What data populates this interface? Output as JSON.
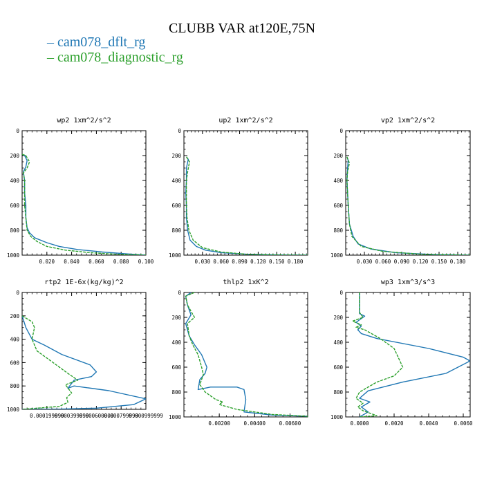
{
  "page_title": "CLUBB VAR at120E,75N",
  "legend": [
    {
      "label": "cam078_dflt_rg",
      "color": "#1f77b4"
    },
    {
      "label": "cam078_diagnostic_rg",
      "color": "#2ca02c"
    }
  ],
  "chart_data": [
    {
      "type": "line",
      "title": "wp2  1xm^2/s^2",
      "xlim": [
        0.0,
        0.1
      ],
      "ylim": [
        1000,
        0
      ],
      "xticks": [
        0.02,
        0.04,
        0.06,
        0.08,
        0.1
      ],
      "xticklabels": [
        "0.020",
        "0.040",
        "0.060",
        "0.080",
        "0.100"
      ],
      "yticks": [
        0,
        200,
        400,
        600,
        800,
        1000
      ],
      "yticklabels": [
        "0",
        "200",
        "400",
        "600",
        "800",
        "1000"
      ],
      "series": [
        {
          "name": "cam078_dflt_rg",
          "color": "#1f77b4",
          "x": [
            0.0,
            0.002,
            0.004,
            0.003,
            0.001,
            0.002,
            0.002,
            0.003,
            0.003,
            0.004,
            0.006,
            0.01,
            0.02,
            0.03,
            0.045,
            0.065,
            0.085,
            0.1
          ],
          "y": [
            190,
            200,
            240,
            290,
            330,
            400,
            500,
            600,
            700,
            780,
            820,
            860,
            900,
            930,
            955,
            975,
            990,
            1000
          ]
        },
        {
          "name": "cam078_diagnostic_rg",
          "color": "#2ca02c",
          "x": [
            0.0,
            0.003,
            0.006,
            0.004,
            0.001,
            0.002,
            0.002,
            0.002,
            0.003,
            0.004,
            0.007,
            0.012,
            0.02,
            0.035,
            0.055,
            0.075,
            0.095,
            0.1
          ],
          "y": [
            190,
            200,
            250,
            300,
            340,
            400,
            500,
            600,
            700,
            800,
            850,
            890,
            930,
            960,
            980,
            992,
            998,
            1000
          ]
        }
      ]
    },
    {
      "type": "line",
      "title": "up2  1xm^2/s^2",
      "xlim": [
        0.0,
        0.2
      ],
      "ylim": [
        1000,
        0
      ],
      "xticks": [
        0.03,
        0.06,
        0.09,
        0.12,
        0.15,
        0.18
      ],
      "xticklabels": [
        "0.030",
        "0.060",
        "0.090",
        "0.120",
        "0.150",
        "0.180"
      ],
      "yticks": [
        0,
        200,
        400,
        600,
        800,
        1000
      ],
      "yticklabels": [
        "0",
        "200",
        "400",
        "600",
        "800",
        "1000"
      ],
      "series": [
        {
          "name": "cam078_dflt_rg",
          "color": "#1f77b4",
          "x": [
            0.004,
            0.007,
            0.004,
            0.004,
            0.003,
            0.004,
            0.004,
            0.006,
            0.01,
            0.02,
            0.035,
            0.06,
            0.1,
            0.15,
            0.2
          ],
          "y": [
            210,
            230,
            300,
            400,
            500,
            600,
            700,
            800,
            880,
            930,
            960,
            980,
            992,
            998,
            1000
          ]
        },
        {
          "name": "cam078_diagnostic_rg",
          "color": "#2ca02c",
          "x": [
            0.004,
            0.009,
            0.006,
            0.004,
            0.004,
            0.004,
            0.005,
            0.008,
            0.015,
            0.03,
            0.06,
            0.1,
            0.15,
            0.2
          ],
          "y": [
            210,
            250,
            330,
            400,
            500,
            600,
            700,
            800,
            880,
            940,
            975,
            992,
            998,
            1000
          ]
        }
      ]
    },
    {
      "type": "line",
      "title": "vp2  1xm^2/s^2",
      "xlim": [
        0.0,
        0.2
      ],
      "ylim": [
        1000,
        0
      ],
      "xticks": [
        0.03,
        0.06,
        0.09,
        0.12,
        0.15,
        0.18
      ],
      "xticklabels": [
        "0.030",
        "0.060",
        "0.090",
        "0.120",
        "0.150",
        "0.180"
      ],
      "yticks": [
        0,
        200,
        400,
        600,
        800,
        1000
      ],
      "yticklabels": [
        "0",
        "200",
        "400",
        "600",
        "800",
        "1000"
      ],
      "series": [
        {
          "name": "cam078_dflt_rg",
          "color": "#1f77b4",
          "x": [
            0.002,
            0.004,
            0.003,
            0.002,
            0.003,
            0.004,
            0.006,
            0.012,
            0.02,
            0.04,
            0.08,
            0.14,
            0.2
          ],
          "y": [
            210,
            240,
            300,
            400,
            500,
            600,
            750,
            850,
            910,
            950,
            980,
            995,
            1000
          ]
        },
        {
          "name": "cam078_diagnostic_rg",
          "color": "#2ca02c",
          "x": [
            0.002,
            0.006,
            0.003,
            0.002,
            0.003,
            0.004,
            0.006,
            0.01,
            0.025,
            0.06,
            0.12,
            0.2
          ],
          "y": [
            210,
            260,
            330,
            400,
            500,
            600,
            750,
            850,
            930,
            970,
            992,
            1000
          ]
        }
      ]
    },
    {
      "type": "line",
      "title": "rtp2  1E-6x(kg/kg)^2",
      "xlim": [
        0.0,
        0.001
      ],
      "ylim": [
        1000,
        0
      ],
      "xticks": [
        0.0002,
        0.0004,
        0.0006,
        0.0008,
        0.001
      ],
      "xticklabels": [
        "0.000199999",
        "0.000399999",
        "0.000600000",
        "0.000799999",
        "0.000999999"
      ],
      "yticks": [
        0,
        200,
        400,
        600,
        800,
        1000
      ],
      "yticklabels": [
        "0",
        "200",
        "400",
        "600",
        "800",
        "1000"
      ],
      "series": [
        {
          "name": "cam078_dflt_rg",
          "color": "#1f77b4",
          "x": [
            0.0,
            3e-05,
            8e-05,
            0.00018,
            0.00032,
            0.00055,
            0.0006,
            0.00056,
            0.00042,
            0.00037,
            0.00042,
            0.0007,
            0.001,
            0.0009,
            0.0006,
            0.0003,
            0.0
          ],
          "y": [
            200,
            300,
            400,
            450,
            530,
            620,
            680,
            720,
            750,
            820,
            800,
            840,
            910,
            960,
            990,
            998,
            1000
          ]
        },
        {
          "name": "cam078_diagnostic_rg",
          "color": "#2ca02c",
          "x": [
            0.0,
            8e-05,
            0.0001,
            8e-05,
            0.00012,
            0.00025,
            0.00038,
            0.00045,
            0.00035,
            0.0004,
            0.00036,
            0.00037,
            0.0003,
            0.0
          ],
          "y": [
            200,
            250,
            300,
            400,
            500,
            600,
            700,
            750,
            790,
            860,
            900,
            940,
            975,
            1000
          ]
        }
      ]
    },
    {
      "type": "line",
      "title": "thlp2  1xK^2",
      "xlim": [
        0.0,
        0.007
      ],
      "ylim": [
        1000,
        0
      ],
      "xticks": [
        0.002,
        0.004,
        0.006
      ],
      "xticklabels": [
        "0.00200",
        "0.00400",
        "0.00600"
      ],
      "yticks": [
        0,
        200,
        400,
        600,
        800,
        1000
      ],
      "yticklabels": [
        "0",
        "200",
        "400",
        "600",
        "800",
        "1000"
      ],
      "series": [
        {
          "name": "cam078_dflt_rg",
          "color": "#1f77b4",
          "x": [
            0.0004,
            0.0001,
            0.0002,
            0.0004,
            0.0001,
            0.0003,
            0.0006,
            0.001,
            0.0013,
            0.0012,
            0.0009,
            0.0008,
            0.0015,
            0.003,
            0.0034,
            0.0035,
            0.0034,
            0.005,
            0.007
          ],
          "y": [
            0,
            30,
            100,
            180,
            250,
            350,
            420,
            500,
            600,
            650,
            700,
            780,
            760,
            760,
            780,
            860,
            960,
            985,
            995
          ]
        },
        {
          "name": "cam078_diagnostic_rg",
          "color": "#2ca02c",
          "x": [
            0.0006,
            0.0001,
            0.0002,
            0.0006,
            0.0002,
            0.0003,
            0.0005,
            0.0008,
            0.001,
            0.0011,
            0.0009,
            0.0012,
            0.0018,
            0.0022,
            0.002,
            0.003,
            0.005,
            0.007
          ],
          "y": [
            0,
            30,
            100,
            200,
            250,
            350,
            420,
            500,
            600,
            660,
            740,
            800,
            860,
            880,
            900,
            940,
            980,
            995
          ]
        }
      ]
    },
    {
      "type": "line",
      "title": "wp3  1xm^3/s^3",
      "xlim": [
        -0.0008,
        0.0064
      ],
      "ylim": [
        1000,
        0
      ],
      "xticks": [
        0.0,
        0.002,
        0.004,
        0.006
      ],
      "xticklabels": [
        "0.0000",
        "0.0020",
        "0.0040",
        "0.0060"
      ],
      "yticks": [
        0,
        200,
        400,
        600,
        800,
        1000
      ],
      "yticklabels": [
        "0",
        "200",
        "400",
        "600",
        "800",
        "1000"
      ],
      "series": [
        {
          "name": "cam078_dflt_rg",
          "color": "#1f77b4",
          "x": [
            0.0,
            0.0,
            0.0003,
            -0.0002,
            0.0001,
            -0.0001,
            0.0001,
            0.001,
            0.004,
            0.006,
            0.0064,
            0.005,
            0.0025,
            0.0005,
            0.0,
            0.0006,
            0.0001,
            0.0005,
            0.0
          ],
          "y": [
            0,
            170,
            190,
            240,
            270,
            300,
            330,
            370,
            450,
            520,
            550,
            650,
            720,
            790,
            850,
            880,
            920,
            960,
            1000
          ]
        },
        {
          "name": "cam078_diagnostic_rg",
          "color": "#2ca02c",
          "x": [
            0.0,
            0.0,
            0.0002,
            -0.0004,
            0.0001,
            -0.0002,
            0.0003,
            0.0012,
            0.002,
            0.0025,
            0.002,
            0.001,
            0.0,
            -0.0002,
            0.0002,
            -0.0001,
            0.0002,
            0.001,
            0.0
          ],
          "y": [
            0,
            160,
            200,
            230,
            260,
            280,
            300,
            370,
            450,
            600,
            670,
            720,
            800,
            850,
            890,
            920,
            950,
            990,
            1000
          ]
        }
      ]
    }
  ]
}
